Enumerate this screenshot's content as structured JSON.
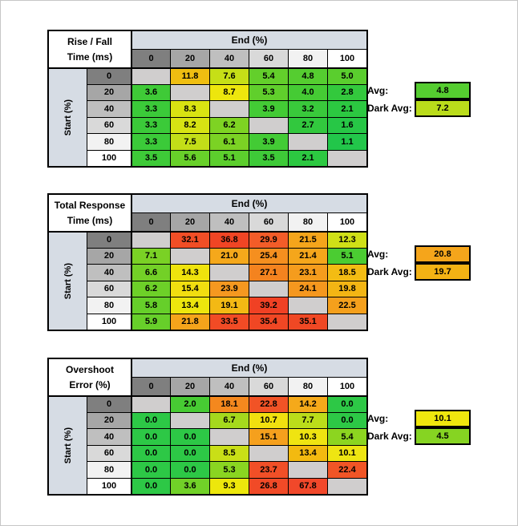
{
  "palette": {
    "blank_cell": "#D0CECE",
    "band_fill": "#D6DCE4",
    "header_shades": [
      "#7F7F7F",
      "#A6A6A6",
      "#BFBFBF",
      "#D9D9D9",
      "#F2F2F2",
      "#FFFFFF"
    ]
  },
  "tables": [
    {
      "title1": "Rise / Fall",
      "title2": "Time (ms)",
      "col_band": "End (%)",
      "row_band": "Start (%)",
      "col_headers": [
        "0",
        "20",
        "40",
        "60",
        "80",
        "100"
      ],
      "row_headers": [
        "0",
        "20",
        "40",
        "60",
        "80",
        "100"
      ],
      "colors": [
        [
          "",
          "#EFBE11",
          "#C6DF17",
          "#63CF2B",
          "#55CD30",
          "#5ACE2E"
        ],
        [
          "#3FCA37",
          "",
          "#EDE60D",
          "#60CF2C",
          "#45CB34",
          "#33C93D"
        ],
        [
          "#3BCA39",
          "#D9E312",
          "",
          "#43CB35",
          "#39C93B",
          "#2CC841"
        ],
        [
          "#3BCA39",
          "#D7E313",
          "#7ED323",
          "",
          "#32C83E",
          "#27C746"
        ],
        [
          "#3BCA39",
          "#C3DE18",
          "#7BD224",
          "#43CB35",
          "",
          "#22C64A"
        ],
        [
          "#3ECA38",
          "#68D02A",
          "#5CCE2D",
          "#3ECA38",
          "#2CC841",
          ""
        ]
      ],
      "avg_label": "Avg:",
      "avg_value": "4.8",
      "avg_color": "#55CD30",
      "dark_avg_label": "Dark Avg:",
      "dark_avg_value": "7.2",
      "dark_avg_color": "#BADC1B"
    },
    {
      "title1": "Total Response",
      "title2": "Time (ms)",
      "col_band": "End (%)",
      "row_band": "Start (%)",
      "col_headers": [
        "0",
        "20",
        "40",
        "60",
        "80",
        "100"
      ],
      "row_headers": [
        "0",
        "20",
        "40",
        "60",
        "80",
        "100"
      ],
      "colors": [
        [
          "",
          "#F14E26",
          "#F04524",
          "#F35C28",
          "#F5A51B",
          "#CFE017"
        ],
        [
          "#7AD125",
          "",
          "#F5A81B",
          "#F58F1F",
          "#F5A61B",
          "#4BCC32"
        ],
        [
          "#73D027",
          "#EFE30D",
          "",
          "#F4831F",
          "#F59C1D",
          "#F3BC13"
        ],
        [
          "#6DD028",
          "#F1DE10",
          "#F59820",
          "",
          "#F5971E",
          "#F3B514"
        ],
        [
          "#66CF2A",
          "#EDE60D",
          "#F3B914",
          "#F04124",
          "",
          "#F5A01C"
        ],
        [
          "#67CF2A",
          "#F5A41B",
          "#F14B25",
          "#F04724",
          "#F04824",
          ""
        ]
      ],
      "avg_label": "Avg:",
      "avg_value": "20.8",
      "avg_color": "#F5A51B",
      "dark_avg_label": "Dark Avg:",
      "dark_avg_value": "19.7",
      "dark_avg_color": "#F3B214"
    },
    {
      "title1": "Overshoot",
      "title2": "Error (%)",
      "col_band": "End (%)",
      "row_band": "Start (%)",
      "col_headers": [
        "0",
        "20",
        "40",
        "60",
        "80",
        "100"
      ],
      "row_headers": [
        "0",
        "20",
        "40",
        "60",
        "80",
        "100"
      ],
      "colors": [
        [
          "",
          "#47CB33",
          "#F4881E",
          "#F15326",
          "#F5A91A",
          "#2DC846"
        ],
        [
          "#2DC846",
          "",
          "#A5D91D",
          "#F1E00F",
          "#BBDD1A",
          "#2DC846"
        ],
        [
          "#2DC846",
          "#2DC846",
          "",
          "#F5A01D",
          "#EFE411",
          "#8CD520"
        ],
        [
          "#2DC846",
          "#2DC846",
          "#C9DF17",
          "",
          "#F3BA10",
          "#EEE512"
        ],
        [
          "#2DC846",
          "#2DC846",
          "#8AD521",
          "#F14F27",
          "",
          "#F15526"
        ],
        [
          "#2DC846",
          "#71D128",
          "#EDE70C",
          "#F14A27",
          "#F1482A",
          ""
        ]
      ],
      "avg_label": "Avg:",
      "avg_value": "10.1",
      "avg_color": "#EFE70E",
      "dark_avg_label": "Dark Avg:",
      "dark_avg_value": "4.5",
      "dark_avg_color": "#86D422"
    }
  ],
  "chart_data": [
    {
      "type": "heatmap",
      "title": "Rise / Fall Time (ms)",
      "xlabel": "End (%)",
      "ylabel": "Start (%)",
      "x": [
        0,
        20,
        40,
        60,
        80,
        100
      ],
      "y": [
        0,
        20,
        40,
        60,
        80,
        100
      ],
      "values": [
        [
          null,
          11.8,
          7.6,
          5.4,
          4.8,
          5.0
        ],
        [
          3.6,
          null,
          8.7,
          5.3,
          4.0,
          2.8
        ],
        [
          3.3,
          8.3,
          null,
          3.9,
          3.2,
          2.1
        ],
        [
          3.3,
          8.2,
          6.2,
          null,
          2.7,
          1.6
        ],
        [
          3.3,
          7.5,
          6.1,
          3.9,
          null,
          1.1
        ],
        [
          3.5,
          5.6,
          5.1,
          3.5,
          2.1,
          null
        ]
      ],
      "avg": 4.8,
      "dark_avg": 7.2,
      "colormap": "green-yellow-red"
    },
    {
      "type": "heatmap",
      "title": "Total Response Time (ms)",
      "xlabel": "End (%)",
      "ylabel": "Start (%)",
      "x": [
        0,
        20,
        40,
        60,
        80,
        100
      ],
      "y": [
        0,
        20,
        40,
        60,
        80,
        100
      ],
      "values": [
        [
          null,
          32.1,
          36.8,
          29.9,
          21.5,
          12.3
        ],
        [
          7.1,
          null,
          21.0,
          25.4,
          21.4,
          5.1
        ],
        [
          6.6,
          14.3,
          null,
          27.1,
          23.1,
          18.5
        ],
        [
          6.2,
          15.4,
          23.9,
          null,
          24.1,
          19.8
        ],
        [
          5.8,
          13.4,
          19.1,
          39.2,
          null,
          22.5
        ],
        [
          5.9,
          21.8,
          33.5,
          35.4,
          35.1,
          null
        ]
      ],
      "avg": 20.8,
      "dark_avg": 19.7,
      "colormap": "green-yellow-red"
    },
    {
      "type": "heatmap",
      "title": "Overshoot Error (%)",
      "xlabel": "End (%)",
      "ylabel": "Start (%)",
      "x": [
        0,
        20,
        40,
        60,
        80,
        100
      ],
      "y": [
        0,
        20,
        40,
        60,
        80,
        100
      ],
      "values": [
        [
          null,
          2.0,
          18.1,
          22.8,
          14.2,
          0.0
        ],
        [
          0.0,
          null,
          6.7,
          10.7,
          7.7,
          0.0
        ],
        [
          0.0,
          0.0,
          null,
          15.1,
          10.3,
          5.4
        ],
        [
          0.0,
          0.0,
          8.5,
          null,
          13.4,
          10.1
        ],
        [
          0.0,
          0.0,
          5.3,
          23.7,
          null,
          22.4
        ],
        [
          0.0,
          3.6,
          9.3,
          26.8,
          67.8,
          null
        ]
      ],
      "avg": 10.1,
      "dark_avg": 4.5,
      "colormap": "green-yellow-red"
    }
  ]
}
